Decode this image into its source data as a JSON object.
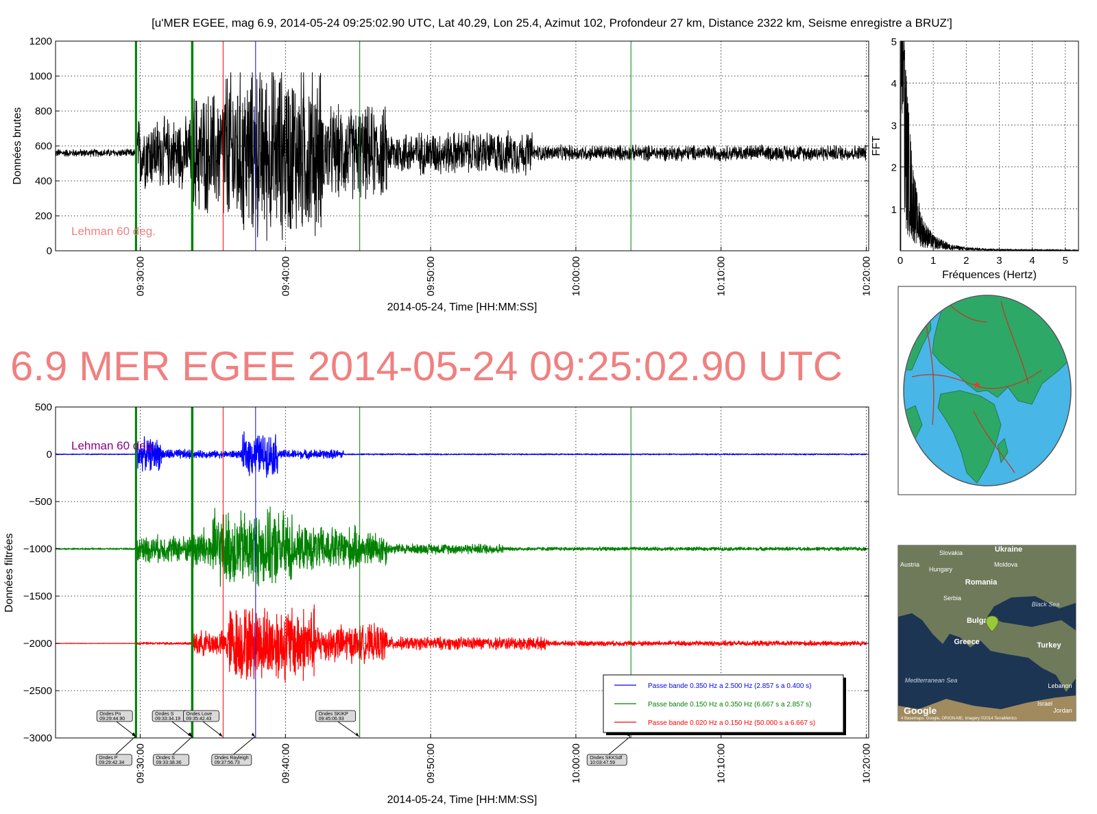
{
  "suptitle": "[u'MER EGEE, mag 6.9, 2014-05-24 09:25:02.90 UTC, Lat 40.29, Lon 25.4, Azimut 102, Profondeur 27 km, Distance  2322 km, Seisme enregistre a BRUZ']",
  "headline": "6.9 MER EGEE 2014-05-24 09:25:02.90 UTC",
  "colors": {
    "trace": "#000000",
    "blue": "#0000ff",
    "green": "#008000",
    "red": "#ff0000",
    "lehman_top": "#f08080",
    "lehman_bottom": "#8b008b",
    "headline": "#f08080"
  },
  "chart_data": [
    {
      "id": "raw",
      "type": "line",
      "ylabel": "Données brutes",
      "xlabel": "2014-05-24, Time [HH:MM:SS]",
      "ylim": [
        0,
        1200
      ],
      "yticks": [
        "0",
        "200",
        "400",
        "600",
        "800",
        "1000",
        "1200"
      ],
      "xlim": [
        "09:24:10",
        "10:20:10"
      ],
      "xticks": [
        "09:30:00",
        "09:40:00",
        "09:50:00",
        "10:00:00",
        "10:10:00",
        "10:20:00"
      ],
      "grid": true,
      "annotation": "Lehman 60 deg.",
      "series": [
        {
          "baseline": 560,
          "segments": [
            {
              "from": "09:24:10",
              "to": "09:29:42",
              "amp": 25
            },
            {
              "from": "09:29:42",
              "to": "09:33:34",
              "amp": 230
            },
            {
              "from": "09:33:34",
              "to": "09:35:42",
              "amp": 400
            },
            {
              "from": "09:35:42",
              "to": "09:42:30",
              "amp": 560,
              "clip": [
                0,
                1020
              ]
            },
            {
              "from": "09:42:30",
              "to": "09:47:00",
              "amp": 300
            },
            {
              "from": "09:47:00",
              "to": "09:57:00",
              "amp": 140
            },
            {
              "from": "09:57:00",
              "to": "10:20:00",
              "amp": 50
            }
          ]
        }
      ],
      "vlines": [
        {
          "t": "09:29:42.34",
          "color": "green",
          "width": 3
        },
        {
          "t": "09:29:44.90",
          "color": "green",
          "width": 1
        },
        {
          "t": "09:33:34.19",
          "color": "green",
          "width": 3
        },
        {
          "t": "09:33:38.36",
          "color": "green",
          "width": 1
        },
        {
          "t": "09:35:42.43",
          "color": "red",
          "width": 1
        },
        {
          "t": "09:37:56.73",
          "color": "blue",
          "width": 1
        },
        {
          "t": "09:45:06.93",
          "color": "green",
          "width": 1
        },
        {
          "t": "10:03:47.59",
          "color": "green",
          "width": 1
        }
      ]
    },
    {
      "id": "fft",
      "type": "line",
      "ylabel": "FFT",
      "xlabel": "Fréquences (Hertz)",
      "xlim": [
        0,
        5.4
      ],
      "ylim": [
        0,
        5
      ],
      "xticks": [
        "0",
        "1",
        "2",
        "3",
        "4",
        "5"
      ],
      "yticks": [
        "1",
        "2",
        "3",
        "4",
        "5"
      ],
      "grid": true,
      "peak": {
        "x": [
          0.02,
          0.08,
          0.15,
          0.25,
          0.35,
          0.5,
          0.7,
          1.0,
          1.5,
          2.0,
          3.0,
          5.4
        ],
        "y": [
          5.0,
          5.0,
          4.5,
          3.2,
          2.2,
          1.3,
          0.7,
          0.35,
          0.15,
          0.08,
          0.04,
          0.02
        ]
      }
    },
    {
      "id": "filtered",
      "type": "line",
      "ylabel": "Données filtrées",
      "xlabel": "2014-05-24, Time [HH:MM:SS]",
      "ylim": [
        -3000,
        500
      ],
      "yticks": [
        "−3000",
        "−2500",
        "−2000",
        "−1500",
        "−1000",
        "−500",
        "0",
        "500"
      ],
      "xlim": [
        "09:24:10",
        "10:20:10"
      ],
      "xticks": [
        "09:30:00",
        "09:40:00",
        "09:50:00",
        "10:00:00",
        "10:10:00",
        "10:20:00"
      ],
      "grid": true,
      "annotation": "Lehman 60 deg.",
      "legend_position": "lower right",
      "series": [
        {
          "name": "Passe bande 0.350 Hz a 2.500 Hz (2.857 s a 0.400 s)",
          "color": "blue",
          "offset": 0,
          "segments": [
            {
              "from": "09:24:10",
              "to": "09:29:42",
              "amp": 6
            },
            {
              "from": "09:29:42",
              "to": "09:31:30",
              "amp": 190
            },
            {
              "from": "09:31:30",
              "to": "09:33:34",
              "amp": 60
            },
            {
              "from": "09:33:34",
              "to": "09:37:00",
              "amp": 45
            },
            {
              "from": "09:37:00",
              "to": "09:39:30",
              "amp": 250
            },
            {
              "from": "09:39:30",
              "to": "09:44:00",
              "amp": 55
            },
            {
              "from": "09:44:00",
              "to": "10:20:00",
              "amp": 8
            }
          ]
        },
        {
          "name": "Passe bande 0.150 Hz a 0.350 Hz (6.667 s a 2.857 s)",
          "color": "green",
          "offset": -1000,
          "segments": [
            {
              "from": "09:24:10",
              "to": "09:29:42",
              "amp": 10
            },
            {
              "from": "09:29:42",
              "to": "09:33:34",
              "amp": 160
            },
            {
              "from": "09:33:34",
              "to": "09:35:00",
              "amp": 260
            },
            {
              "from": "09:35:00",
              "to": "09:40:30",
              "amp": 450
            },
            {
              "from": "09:40:30",
              "to": "09:45:00",
              "amp": 260
            },
            {
              "from": "09:45:00",
              "to": "09:47:00",
              "amp": 200
            },
            {
              "from": "09:47:00",
              "to": "09:55:00",
              "amp": 60
            },
            {
              "from": "09:55:00",
              "to": "10:20:00",
              "amp": 22
            }
          ]
        },
        {
          "name": "Passe bande 0.020 Hz a 0.150 Hz (50.000 s a 6.667 s)",
          "color": "red",
          "offset": -2000,
          "segments": [
            {
              "from": "09:24:10",
              "to": "09:29:42",
              "amp": 3
            },
            {
              "from": "09:29:42",
              "to": "09:33:34",
              "amp": 15
            },
            {
              "from": "09:33:34",
              "to": "09:36:00",
              "amp": 150
            },
            {
              "from": "09:36:00",
              "to": "09:42:00",
              "amp": 450
            },
            {
              "from": "09:42:00",
              "to": "09:47:00",
              "amp": 220
            },
            {
              "from": "09:47:00",
              "to": "09:58:00",
              "amp": 75
            },
            {
              "from": "09:58:00",
              "to": "10:20:00",
              "amp": 30
            }
          ]
        }
      ],
      "vlines": [
        {
          "t": "09:29:42.34",
          "color": "green",
          "width": 3
        },
        {
          "t": "09:29:44.90",
          "color": "green",
          "width": 1
        },
        {
          "t": "09:33:34.19",
          "color": "green",
          "width": 3
        },
        {
          "t": "09:33:38.36",
          "color": "green",
          "width": 1
        },
        {
          "t": "09:35:42.43",
          "color": "red",
          "width": 1
        },
        {
          "t": "09:37:56.73",
          "color": "blue",
          "width": 1
        },
        {
          "t": "09:45:06.93",
          "color": "green",
          "width": 1
        },
        {
          "t": "10:03:47.59",
          "color": "green",
          "width": 1
        }
      ],
      "phase_labels": [
        {
          "name": "Ondes Pn",
          "time": "09:29:44.90",
          "side": "top"
        },
        {
          "name": "Ondes S",
          "time": "09:33:34.19",
          "side": "top"
        },
        {
          "name": "Ondes Love",
          "time": "09:35:42.43",
          "side": "top"
        },
        {
          "name": "Ondes SKIKP",
          "time": "09:45:06.93",
          "side": "top"
        },
        {
          "name": "Ondes P",
          "time": "09:29:42.34",
          "side": "bottom"
        },
        {
          "name": "Ondes S",
          "time": "09:33:38.36",
          "side": "bottom"
        },
        {
          "name": "Ondes Rayleigh",
          "time": "09:37:56.73",
          "side": "bottom"
        },
        {
          "name": "Ondes SKKSdf",
          "time": "10:03:47.59",
          "side": "bottom"
        }
      ]
    }
  ],
  "globe": {
    "epicenter": "Lat 40.29, Lon 25.4"
  },
  "regional_map": {
    "labels": [
      "Ukraine",
      "Slovakia",
      "Austria",
      "Hungary",
      "Moldova",
      "Romania",
      "Serbia",
      "Black Sea",
      "Bulgaria",
      "Greece",
      "Turkey",
      "Mediterranean Sea",
      "Lebanon",
      "Israel",
      "Jordan"
    ],
    "attribution": "Google",
    "footer": "4 Basemaps: Google, ORION-ME, Imagery ©2014 TerraMetrics"
  }
}
